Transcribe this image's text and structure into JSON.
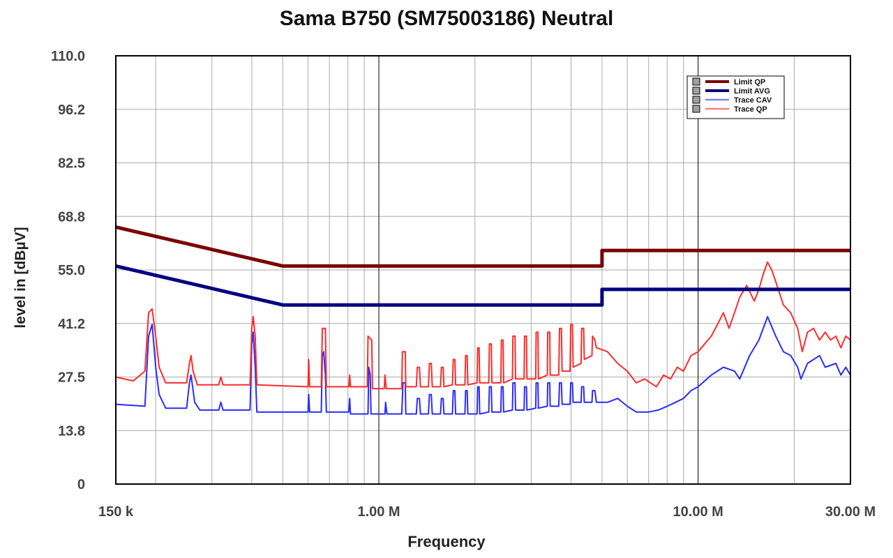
{
  "chart_data": {
    "type": "line",
    "title": "Sama B750 (SM75003186) Neutral",
    "xlabel": "Frequency",
    "ylabel": "level in [dBµV]",
    "xscale": "log",
    "xlim_mhz": [
      0.15,
      30
    ],
    "ylim": [
      0,
      110
    ],
    "grid": true,
    "legend_position": "top-right",
    "yticks": [
      {
        "value": 0,
        "label": "0"
      },
      {
        "value": 13.75,
        "label": "13.8"
      },
      {
        "value": 27.5,
        "label": "27.5"
      },
      {
        "value": 41.25,
        "label": "41.2"
      },
      {
        "value": 55,
        "label": "55.0"
      },
      {
        "value": 68.75,
        "label": "68.8"
      },
      {
        "value": 82.5,
        "label": "82.5"
      },
      {
        "value": 96.25,
        "label": "96.2"
      },
      {
        "value": 110,
        "label": "110.0"
      }
    ],
    "xticks": [
      {
        "value": 0.15,
        "label": "150 k"
      },
      {
        "value": 1,
        "label": "1.00 M"
      },
      {
        "value": 10,
        "label": "10.00 M"
      },
      {
        "value": 30,
        "label": "30.00 M"
      }
    ],
    "minor_grid_x_mhz": [
      0.2,
      0.3,
      0.4,
      0.5,
      0.6,
      0.7,
      0.8,
      0.9,
      2,
      3,
      4,
      5,
      6,
      7,
      8,
      9,
      20,
      30
    ],
    "major_grid_x_mhz": [
      1,
      10
    ],
    "series": [
      {
        "name": "Limit QP",
        "color": "#7a0000",
        "width": 5,
        "points": [
          [
            0.15,
            66
          ],
          [
            0.5,
            56
          ],
          [
            5,
            56
          ],
          [
            5,
            60
          ],
          [
            30,
            60
          ]
        ]
      },
      {
        "name": "Limit AVG",
        "color": "#000080",
        "width": 5,
        "points": [
          [
            0.15,
            56
          ],
          [
            0.5,
            46
          ],
          [
            5,
            46
          ],
          [
            5,
            50
          ],
          [
            30,
            50
          ]
        ]
      },
      {
        "name": "Trace CAV",
        "color": "#2a2aff",
        "width": 2,
        "points": [
          [
            0.15,
            20.5
          ],
          [
            0.185,
            20
          ],
          [
            0.19,
            38
          ],
          [
            0.195,
            41
          ],
          [
            0.2,
            30
          ],
          [
            0.205,
            23
          ],
          [
            0.215,
            19.5
          ],
          [
            0.25,
            19.5
          ],
          [
            0.255,
            26
          ],
          [
            0.258,
            28
          ],
          [
            0.265,
            21
          ],
          [
            0.275,
            19
          ],
          [
            0.315,
            19
          ],
          [
            0.32,
            21
          ],
          [
            0.325,
            19
          ],
          [
            0.395,
            19
          ],
          [
            0.4,
            36
          ],
          [
            0.404,
            39
          ],
          [
            0.41,
            30
          ],
          [
            0.415,
            18.5
          ],
          [
            0.6,
            18.5
          ],
          [
            0.603,
            23
          ],
          [
            0.607,
            18.5
          ],
          [
            0.66,
            18.5
          ],
          [
            0.665,
            33
          ],
          [
            0.672,
            34
          ],
          [
            0.68,
            28
          ],
          [
            0.685,
            18.5
          ],
          [
            0.805,
            18.5
          ],
          [
            0.81,
            22
          ],
          [
            0.815,
            18
          ],
          [
            0.925,
            18
          ],
          [
            0.93,
            30
          ],
          [
            0.94,
            28
          ],
          [
            0.945,
            18
          ],
          [
            1.045,
            18
          ],
          [
            1.05,
            21
          ],
          [
            1.06,
            18
          ],
          [
            1.18,
            18
          ],
          [
            1.19,
            26
          ],
          [
            1.21,
            26
          ],
          [
            1.215,
            18
          ],
          [
            1.31,
            18
          ],
          [
            1.32,
            22
          ],
          [
            1.34,
            22
          ],
          [
            1.35,
            18
          ],
          [
            1.43,
            18
          ],
          [
            1.44,
            23
          ],
          [
            1.46,
            23
          ],
          [
            1.47,
            18
          ],
          [
            1.56,
            18
          ],
          [
            1.57,
            22
          ],
          [
            1.59,
            22
          ],
          [
            1.6,
            18
          ],
          [
            1.7,
            18
          ],
          [
            1.71,
            24
          ],
          [
            1.73,
            24
          ],
          [
            1.74,
            18
          ],
          [
            1.86,
            18
          ],
          [
            1.87,
            24
          ],
          [
            1.89,
            24
          ],
          [
            1.9,
            18
          ],
          [
            2.03,
            18
          ],
          [
            2.04,
            25
          ],
          [
            2.06,
            25
          ],
          [
            2.07,
            18
          ],
          [
            2.21,
            18.5
          ],
          [
            2.22,
            25
          ],
          [
            2.25,
            25
          ],
          [
            2.26,
            18.5
          ],
          [
            2.41,
            18.5
          ],
          [
            2.42,
            25
          ],
          [
            2.45,
            25
          ],
          [
            2.46,
            18.5
          ],
          [
            2.62,
            19
          ],
          [
            2.63,
            26
          ],
          [
            2.67,
            26
          ],
          [
            2.68,
            19
          ],
          [
            2.85,
            19
          ],
          [
            2.86,
            25
          ],
          [
            2.9,
            25
          ],
          [
            2.91,
            19
          ],
          [
            3.1,
            19.5
          ],
          [
            3.11,
            26
          ],
          [
            3.15,
            26
          ],
          [
            3.16,
            19.5
          ],
          [
            3.37,
            20
          ],
          [
            3.38,
            26
          ],
          [
            3.43,
            26
          ],
          [
            3.44,
            20
          ],
          [
            3.66,
            20
          ],
          [
            3.68,
            26
          ],
          [
            3.73,
            26
          ],
          [
            3.75,
            20.5
          ],
          [
            3.97,
            20.5
          ],
          [
            3.99,
            26
          ],
          [
            4.04,
            26
          ],
          [
            4.06,
            21
          ],
          [
            4.3,
            21
          ],
          [
            4.32,
            25
          ],
          [
            4.38,
            25
          ],
          [
            4.4,
            21
          ],
          [
            4.65,
            21
          ],
          [
            4.67,
            24
          ],
          [
            4.75,
            24
          ],
          [
            4.8,
            21
          ],
          [
            5.2,
            21
          ],
          [
            5.6,
            22
          ],
          [
            6,
            20
          ],
          [
            6.4,
            18.5
          ],
          [
            7,
            18.5
          ],
          [
            7.5,
            19
          ],
          [
            8,
            20
          ],
          [
            8.5,
            21
          ],
          [
            9,
            22
          ],
          [
            9.5,
            24
          ],
          [
            10,
            25
          ],
          [
            11,
            28
          ],
          [
            12,
            30
          ],
          [
            13,
            29
          ],
          [
            13.5,
            27
          ],
          [
            14.5,
            33
          ],
          [
            15.5,
            37
          ],
          [
            16.5,
            43
          ],
          [
            17.5,
            38
          ],
          [
            18.5,
            34
          ],
          [
            19.5,
            33
          ],
          [
            20.5,
            30
          ],
          [
            21,
            27
          ],
          [
            22,
            31
          ],
          [
            24,
            33
          ],
          [
            25,
            30
          ],
          [
            27,
            31
          ],
          [
            28,
            28
          ],
          [
            29,
            30
          ],
          [
            30,
            28
          ]
        ]
      },
      {
        "name": "Trace QP",
        "color": "#ff2a2a",
        "width": 2,
        "points": [
          [
            0.15,
            27.5
          ],
          [
            0.17,
            26.5
          ],
          [
            0.185,
            29
          ],
          [
            0.19,
            44
          ],
          [
            0.195,
            45
          ],
          [
            0.2,
            38
          ],
          [
            0.205,
            30
          ],
          [
            0.215,
            26
          ],
          [
            0.25,
            26
          ],
          [
            0.255,
            31
          ],
          [
            0.258,
            33
          ],
          [
            0.262,
            29
          ],
          [
            0.27,
            25.5
          ],
          [
            0.315,
            25.5
          ],
          [
            0.32,
            27.5
          ],
          [
            0.325,
            25.5
          ],
          [
            0.395,
            25.5
          ],
          [
            0.4,
            40
          ],
          [
            0.404,
            43
          ],
          [
            0.41,
            38
          ],
          [
            0.415,
            25.5
          ],
          [
            0.6,
            25
          ],
          [
            0.603,
            32
          ],
          [
            0.607,
            25
          ],
          [
            0.66,
            25
          ],
          [
            0.665,
            40
          ],
          [
            0.68,
            40
          ],
          [
            0.685,
            25
          ],
          [
            0.805,
            25
          ],
          [
            0.81,
            28
          ],
          [
            0.815,
            25
          ],
          [
            0.92,
            25
          ],
          [
            0.925,
            38
          ],
          [
            0.95,
            37
          ],
          [
            0.955,
            24.5
          ],
          [
            1.04,
            24.5
          ],
          [
            1.045,
            28
          ],
          [
            1.055,
            24.5
          ],
          [
            1.18,
            24.5
          ],
          [
            1.185,
            34
          ],
          [
            1.21,
            34
          ],
          [
            1.215,
            25
          ],
          [
            1.31,
            25
          ],
          [
            1.32,
            30
          ],
          [
            1.34,
            30
          ],
          [
            1.35,
            25
          ],
          [
            1.43,
            25
          ],
          [
            1.44,
            31
          ],
          [
            1.46,
            31
          ],
          [
            1.47,
            25
          ],
          [
            1.56,
            25
          ],
          [
            1.57,
            30
          ],
          [
            1.59,
            30
          ],
          [
            1.6,
            25
          ],
          [
            1.7,
            25.5
          ],
          [
            1.71,
            32
          ],
          [
            1.73,
            32
          ],
          [
            1.74,
            25.5
          ],
          [
            1.86,
            25.5
          ],
          [
            1.87,
            33
          ],
          [
            1.89,
            33
          ],
          [
            1.9,
            25.5
          ],
          [
            2.03,
            26
          ],
          [
            2.04,
            35
          ],
          [
            2.06,
            35
          ],
          [
            2.07,
            26
          ],
          [
            2.21,
            26
          ],
          [
            2.22,
            36
          ],
          [
            2.25,
            36
          ],
          [
            2.26,
            26
          ],
          [
            2.41,
            26
          ],
          [
            2.42,
            37
          ],
          [
            2.45,
            37
          ],
          [
            2.46,
            26
          ],
          [
            2.62,
            27
          ],
          [
            2.63,
            38
          ],
          [
            2.67,
            38
          ],
          [
            2.68,
            27
          ],
          [
            2.85,
            27
          ],
          [
            2.86,
            38
          ],
          [
            2.9,
            38
          ],
          [
            2.91,
            27
          ],
          [
            3.1,
            27
          ],
          [
            3.11,
            39
          ],
          [
            3.15,
            39
          ],
          [
            3.16,
            27
          ],
          [
            3.37,
            28
          ],
          [
            3.38,
            39
          ],
          [
            3.43,
            39
          ],
          [
            3.44,
            28
          ],
          [
            3.66,
            28
          ],
          [
            3.68,
            40
          ],
          [
            3.73,
            40
          ],
          [
            3.75,
            29
          ],
          [
            3.97,
            29
          ],
          [
            3.99,
            41
          ],
          [
            4.04,
            41
          ],
          [
            4.06,
            30
          ],
          [
            4.3,
            31
          ],
          [
            4.32,
            40
          ],
          [
            4.38,
            40
          ],
          [
            4.4,
            32
          ],
          [
            4.65,
            33
          ],
          [
            4.67,
            38
          ],
          [
            4.75,
            37
          ],
          [
            4.8,
            35
          ],
          [
            5.2,
            34
          ],
          [
            5.6,
            31
          ],
          [
            6,
            29
          ],
          [
            6.4,
            26
          ],
          [
            6.8,
            27
          ],
          [
            7.4,
            25
          ],
          [
            7.8,
            28
          ],
          [
            8.2,
            27
          ],
          [
            8.6,
            30
          ],
          [
            9,
            29
          ],
          [
            9.5,
            33
          ],
          [
            10,
            34
          ],
          [
            11,
            38
          ],
          [
            11.5,
            41
          ],
          [
            12,
            44
          ],
          [
            12.5,
            40
          ],
          [
            13,
            44
          ],
          [
            13.5,
            48
          ],
          [
            14.2,
            51
          ],
          [
            15,
            47
          ],
          [
            15.5,
            50
          ],
          [
            16,
            54
          ],
          [
            16.5,
            57
          ],
          [
            17,
            55
          ],
          [
            17.5,
            52
          ],
          [
            18.5,
            46
          ],
          [
            19.5,
            44
          ],
          [
            20.5,
            40
          ],
          [
            21.2,
            34
          ],
          [
            22,
            39
          ],
          [
            23,
            40
          ],
          [
            24,
            37
          ],
          [
            25,
            39
          ],
          [
            26,
            37
          ],
          [
            27,
            38
          ],
          [
            28,
            35
          ],
          [
            29,
            38
          ],
          [
            30,
            37
          ]
        ]
      }
    ]
  }
}
